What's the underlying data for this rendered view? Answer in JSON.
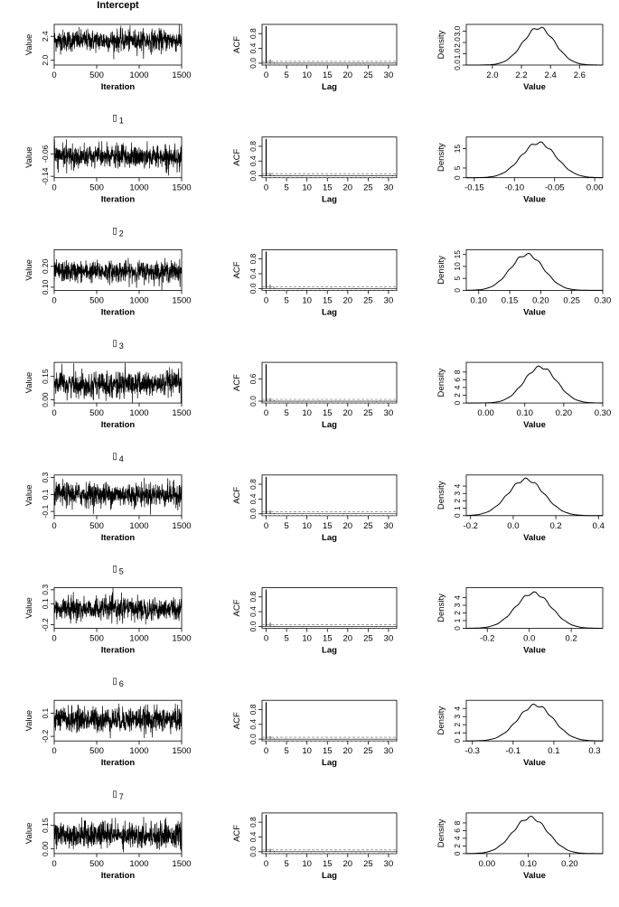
{
  "figure": {
    "trace_xlabel": "Iteration",
    "trace_ylabel": "Value",
    "acf_xlabel": "Lag",
    "acf_ylabel": "ACF",
    "density_xlabel": "Value",
    "density_ylabel": "Density"
  },
  "chart_data": [
    {
      "row": 1,
      "title": "Intercept",
      "title_bold": true,
      "title_symbol": "",
      "title_subscript": "",
      "trace": {
        "type": "line",
        "x_range": [
          1,
          1500
        ],
        "center": 2.33,
        "spread": 0.09,
        "xticks": [
          "0",
          "500",
          "1000",
          "1500"
        ],
        "yticks": [
          "2.0",
          "2.4"
        ],
        "ylim": [
          1.92,
          2.6
        ]
      },
      "acf": {
        "type": "bar",
        "x_range": [
          0,
          32
        ],
        "lags": [
          0,
          1,
          2,
          3,
          4,
          5,
          10,
          15,
          20,
          25,
          30
        ],
        "values": [
          1.0,
          0.1,
          0.02,
          0.01,
          0.0,
          0.01,
          0.0,
          0.01,
          0.0,
          0.01,
          0.0
        ],
        "ci": 0.05,
        "xticks": [
          "0",
          "5",
          "10",
          "15",
          "20",
          "25",
          "30"
        ],
        "yticks": [
          "0.0",
          "0.4",
          "0.8"
        ],
        "ylim": [
          -0.05,
          1.05
        ]
      },
      "density": {
        "type": "line",
        "mode": 2.32,
        "sd": 0.11,
        "peak": 3.3,
        "xlim": [
          1.82,
          2.76
        ],
        "xticks": [
          "2.0",
          "2.2",
          "2.4",
          "2.6"
        ],
        "yticks": [
          "0.0",
          "1.0",
          "2.0",
          "3.0"
        ],
        "ylim": [
          0,
          3.6
        ]
      }
    },
    {
      "row": 2,
      "title": "",
      "title_bold": false,
      "title_symbol": "▯",
      "title_subscript": "1",
      "trace": {
        "type": "line",
        "x_range": [
          1,
          1500
        ],
        "center": -0.07,
        "spread": 0.02,
        "xticks": [
          "0",
          "500",
          "1000",
          "1500"
        ],
        "yticks": [
          "-0.14",
          "-0.06"
        ],
        "ylim": [
          -0.145,
          0.0
        ]
      },
      "acf": {
        "type": "bar",
        "x_range": [
          0,
          32
        ],
        "lags": [
          0,
          1,
          2,
          3,
          4,
          5,
          10,
          15,
          20,
          25,
          30
        ],
        "values": [
          1.0,
          0.08,
          0.02,
          0.01,
          0.0,
          0.01,
          0.0,
          0.01,
          0.0,
          0.0,
          0.0
        ],
        "ci": 0.05,
        "xticks": [
          "0",
          "5",
          "10",
          "15",
          "20",
          "25",
          "30"
        ],
        "yticks": [
          "0.0",
          "0.4",
          "0.8"
        ],
        "ylim": [
          -0.05,
          1.05
        ]
      },
      "density": {
        "type": "line",
        "mode": -0.07,
        "sd": 0.022,
        "peak": 18,
        "xlim": [
          -0.16,
          0.01
        ],
        "xticks": [
          "-0.15",
          "-0.10",
          "-0.05",
          "0.00"
        ],
        "yticks": [
          "0",
          "5",
          "15"
        ],
        "ylim": [
          0,
          21
        ]
      }
    },
    {
      "row": 3,
      "title": "",
      "title_bold": false,
      "title_symbol": "▯",
      "title_subscript": "2",
      "trace": {
        "type": "line",
        "x_range": [
          1,
          1500
        ],
        "center": 0.175,
        "spread": 0.025,
        "xticks": [
          "0",
          "500",
          "1000",
          "1500"
        ],
        "yticks": [
          "0.10",
          "0.20"
        ],
        "ylim": [
          0.085,
          0.28
        ]
      },
      "acf": {
        "type": "bar",
        "x_range": [
          0,
          32
        ],
        "lags": [
          0,
          1,
          2,
          3,
          4,
          5,
          10,
          15,
          20,
          25,
          30
        ],
        "values": [
          1.0,
          0.1,
          0.03,
          0.01,
          0.0,
          0.01,
          0.01,
          0.0,
          0.01,
          0.0,
          0.0
        ],
        "ci": 0.05,
        "xticks": [
          "0",
          "5",
          "10",
          "15",
          "20",
          "25",
          "30"
        ],
        "yticks": [
          "0.0",
          "0.4",
          "0.8"
        ],
        "ylim": [
          -0.05,
          1.05
        ]
      },
      "density": {
        "type": "line",
        "mode": 0.178,
        "sd": 0.027,
        "peak": 15,
        "xlim": [
          0.08,
          0.3
        ],
        "xticks": [
          "0.10",
          "0.15",
          "0.20",
          "0.25",
          "0.30"
        ],
        "yticks": [
          "0",
          "5",
          "10",
          "15"
        ],
        "ylim": [
          0,
          17
        ]
      }
    },
    {
      "row": 4,
      "title": "",
      "title_bold": false,
      "title_symbol": "▯",
      "title_subscript": "3",
      "trace": {
        "type": "line",
        "x_range": [
          1,
          1500
        ],
        "center": 0.1,
        "spread": 0.04,
        "xticks": [
          "0",
          "500",
          "1000",
          "1500"
        ],
        "yticks": [
          "0.00",
          "0.15"
        ],
        "ylim": [
          -0.02,
          0.24
        ]
      },
      "acf": {
        "type": "bar",
        "x_range": [
          0,
          32
        ],
        "lags": [
          0,
          1,
          2,
          3,
          4,
          5,
          10,
          15,
          20,
          25,
          30
        ],
        "values": [
          1.0,
          0.08,
          0.02,
          0.01,
          0.0,
          0.0,
          0.01,
          0.0,
          0.0,
          0.01,
          0.0
        ],
        "ci": 0.05,
        "xticks": [
          "0",
          "5",
          "10",
          "15",
          "20",
          "25",
          "30"
        ],
        "yticks": [
          "0.0",
          "0.6"
        ],
        "ylim": [
          -0.05,
          1.05
        ]
      },
      "density": {
        "type": "line",
        "mode": 0.14,
        "sd": 0.042,
        "peak": 9.3,
        "xlim": [
          -0.05,
          0.3
        ],
        "xticks": [
          "0.00",
          "0.10",
          "0.20",
          "0.30"
        ],
        "yticks": [
          "0",
          "2",
          "4",
          "6",
          "8"
        ],
        "ylim": [
          0,
          10.5
        ]
      }
    },
    {
      "row": 5,
      "title": "",
      "title_bold": false,
      "title_symbol": "▯",
      "title_subscript": "4",
      "trace": {
        "type": "line",
        "x_range": [
          1,
          1500
        ],
        "center": 0.1,
        "spread": 0.07,
        "xticks": [
          "0",
          "500",
          "1000",
          "1500"
        ],
        "yticks": [
          "-0.1",
          "0.1",
          "0.3"
        ],
        "ylim": [
          -0.15,
          0.33
        ]
      },
      "acf": {
        "type": "bar",
        "x_range": [
          0,
          32
        ],
        "lags": [
          0,
          1,
          2,
          3,
          4,
          5,
          10,
          15,
          20,
          25,
          30
        ],
        "values": [
          1.0,
          0.09,
          0.02,
          0.01,
          0.0,
          0.01,
          0.0,
          0.0,
          0.01,
          0.0,
          0.0
        ],
        "ci": 0.05,
        "xticks": [
          "0",
          "5",
          "10",
          "15",
          "20",
          "25",
          "30"
        ],
        "yticks": [
          "0.0",
          "0.4",
          "0.8"
        ],
        "ylim": [
          -0.05,
          1.05
        ]
      },
      "density": {
        "type": "line",
        "mode": 0.06,
        "sd": 0.085,
        "peak": 4.9,
        "xlim": [
          -0.22,
          0.42
        ],
        "xticks": [
          "-0.2",
          "0.0",
          "0.2",
          "0.4"
        ],
        "yticks": [
          "0",
          "1",
          "2",
          "3",
          "4"
        ],
        "ylim": [
          0,
          5.5
        ]
      }
    },
    {
      "row": 6,
      "title": "",
      "title_bold": false,
      "title_symbol": "▯",
      "title_subscript": "5",
      "trace": {
        "type": "line",
        "x_range": [
          1,
          1500
        ],
        "center": 0.03,
        "spread": 0.08,
        "xticks": [
          "0",
          "500",
          "1000",
          "1500"
        ],
        "yticks": [
          "-0.2",
          "0.1",
          "0.3"
        ],
        "ylim": [
          -0.25,
          0.33
        ]
      },
      "acf": {
        "type": "bar",
        "x_range": [
          0,
          32
        ],
        "lags": [
          0,
          1,
          2,
          3,
          4,
          5,
          10,
          15,
          20,
          25,
          30
        ],
        "values": [
          1.0,
          0.1,
          0.02,
          0.01,
          0.0,
          0.0,
          0.01,
          0.0,
          0.0,
          0.01,
          0.0
        ],
        "ci": 0.05,
        "xticks": [
          "0",
          "5",
          "10",
          "15",
          "20",
          "25",
          "30"
        ],
        "yticks": [
          "0.0",
          "0.4",
          "0.8"
        ],
        "ylim": [
          -0.05,
          1.05
        ]
      },
      "density": {
        "type": "line",
        "mode": 0.02,
        "sd": 0.085,
        "peak": 4.6,
        "xlim": [
          -0.3,
          0.35
        ],
        "xticks": [
          "-0.2",
          "0.0",
          "0.2"
        ],
        "yticks": [
          "0",
          "1",
          "2",
          "3",
          "4"
        ],
        "ylim": [
          0,
          5.3
        ]
      }
    },
    {
      "row": 7,
      "title": "",
      "title_bold": false,
      "title_symbol": "▯",
      "title_subscript": "6",
      "trace": {
        "type": "line",
        "x_range": [
          1,
          1500
        ],
        "center": 0.02,
        "spread": 0.08,
        "xticks": [
          "0",
          "500",
          "1000",
          "1500"
        ],
        "yticks": [
          "-0.2",
          "0.1"
        ],
        "ylim": [
          -0.26,
          0.27
        ]
      },
      "acf": {
        "type": "bar",
        "x_range": [
          0,
          32
        ],
        "lags": [
          0,
          1,
          2,
          3,
          4,
          5,
          10,
          15,
          20,
          25,
          30
        ],
        "values": [
          1.0,
          0.08,
          0.02,
          0.01,
          0.0,
          0.01,
          0.0,
          0.0,
          0.01,
          0.0,
          0.0
        ],
        "ci": 0.05,
        "xticks": [
          "0",
          "5",
          "10",
          "15",
          "20",
          "25",
          "30"
        ],
        "yticks": [
          "0.0",
          "0.4",
          "0.8"
        ],
        "ylim": [
          -0.05,
          1.05
        ]
      },
      "density": {
        "type": "line",
        "mode": 0.01,
        "sd": 0.088,
        "peak": 4.4,
        "xlim": [
          -0.33,
          0.34
        ],
        "xticks": [
          "-0.3",
          "-0.1",
          "0.1",
          "0.3"
        ],
        "yticks": [
          "0",
          "1",
          "2",
          "3",
          "4"
        ],
        "ylim": [
          0,
          5.0
        ]
      }
    },
    {
      "row": 8,
      "title": "",
      "title_bold": false,
      "title_symbol": "▯",
      "title_subscript": "7",
      "trace": {
        "type": "line",
        "x_range": [
          1,
          1500
        ],
        "center": 0.09,
        "spread": 0.04,
        "xticks": [
          "0",
          "500",
          "1000",
          "1500"
        ],
        "yticks": [
          "0.00",
          "0.15"
        ],
        "ylim": [
          -0.03,
          0.23
        ]
      },
      "acf": {
        "type": "bar",
        "x_range": [
          0,
          32
        ],
        "lags": [
          0,
          1,
          2,
          3,
          4,
          5,
          10,
          15,
          20,
          25,
          30
        ],
        "values": [
          1.0,
          0.08,
          0.02,
          0.01,
          0.0,
          0.0,
          0.01,
          0.0,
          0.0,
          0.0,
          0.0
        ],
        "ci": 0.05,
        "xticks": [
          "0",
          "5",
          "10",
          "15",
          "20",
          "25",
          "30"
        ],
        "yticks": [
          "0.0",
          "0.4",
          "0.8"
        ],
        "ylim": [
          -0.05,
          1.05
        ]
      },
      "density": {
        "type": "line",
        "mode": 0.105,
        "sd": 0.042,
        "peak": 9.4,
        "xlim": [
          -0.05,
          0.28
        ],
        "xticks": [
          "0.00",
          "0.10",
          "0.20"
        ],
        "yticks": [
          "0",
          "2",
          "4",
          "6",
          "8"
        ],
        "ylim": [
          0,
          10.6
        ]
      }
    }
  ]
}
